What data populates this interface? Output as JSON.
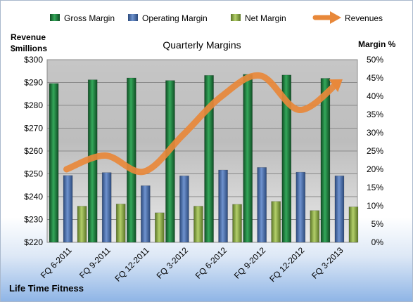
{
  "chart_data": {
    "type": "bar",
    "title": "Quarterly Margins",
    "footer": "Life Time Fitness",
    "left_axis_label_line1": "Revenue",
    "left_axis_label_line2": "$millions",
    "right_axis_label": "Margin %",
    "categories": [
      "FQ 6-2011",
      "FQ 9-2011",
      "FQ 12-2011",
      "FQ 3-2012",
      "FQ 6-2012",
      "FQ 9-2012",
      "FQ 12-2012",
      "FQ 3-2013"
    ],
    "series": [
      {
        "name": "Gross Margin",
        "axis": "right",
        "kind": "bar",
        "color": "#1e7a3c",
        "values": [
          43.5,
          44.5,
          45.0,
          44.3,
          45.7,
          46.0,
          45.8,
          44.9
        ]
      },
      {
        "name": "Operating Margin",
        "axis": "right",
        "kind": "bar",
        "color": "#4a6fa8",
        "values": [
          18.3,
          19.1,
          15.5,
          18.2,
          19.8,
          20.5,
          19.2,
          18.2
        ]
      },
      {
        "name": "Net Margin",
        "axis": "right",
        "kind": "bar",
        "color": "#8fae48",
        "values": [
          9.9,
          10.5,
          8.1,
          9.9,
          10.4,
          11.2,
          8.7,
          9.7
        ]
      },
      {
        "name": "Revenues",
        "axis": "left",
        "kind": "line",
        "color": "#e8883a",
        "values": [
          252,
          258,
          251,
          267,
          284,
          293,
          278,
          290
        ]
      }
    ],
    "left_axis": {
      "min": 220,
      "max": 300,
      "step": 10,
      "tick_format": "$"
    },
    "right_axis": {
      "min": 0,
      "max": 50,
      "step": 5,
      "tick_format": "%"
    },
    "grid": true,
    "legend_position": "top"
  }
}
